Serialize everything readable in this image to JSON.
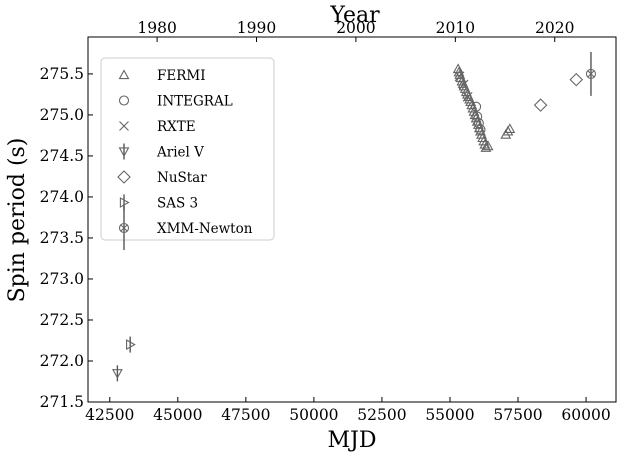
{
  "chart_data": {
    "type": "scatter",
    "xlabel": "MJD",
    "ylabel": "Spin period (s)",
    "top_xlabel": "Year",
    "xlim": [
      41700,
      61100
    ],
    "ylim": [
      271.5,
      275.95
    ],
    "xticks": [
      42500,
      45000,
      47500,
      50000,
      52500,
      55000,
      57500,
      60000
    ],
    "yticks": [
      271.5,
      272.0,
      272.5,
      273.0,
      273.5,
      274.0,
      274.5,
      275.0,
      275.5
    ],
    "top_ticks": [
      {
        "year": "1980",
        "mjd": 44239
      },
      {
        "year": "1990",
        "mjd": 47892
      },
      {
        "year": "2000",
        "mjd": 51544
      },
      {
        "year": "2010",
        "mjd": 55197
      },
      {
        "year": "2020",
        "mjd": 58849
      }
    ],
    "legend_position": "upper-left",
    "grid": false,
    "series": [
      {
        "name": "FERMI",
        "marker": "triangle-up",
        "points": [
          [
            55300,
            275.56
          ],
          [
            55330,
            275.52
          ],
          [
            55360,
            275.49
          ],
          [
            55400,
            275.45
          ],
          [
            55440,
            275.41
          ],
          [
            55480,
            275.38
          ],
          [
            55520,
            275.35
          ],
          [
            55560,
            275.32
          ],
          [
            55600,
            275.28
          ],
          [
            55640,
            275.25
          ],
          [
            55680,
            275.22
          ],
          [
            55720,
            275.19
          ],
          [
            55760,
            275.16
          ],
          [
            55800,
            275.12
          ],
          [
            55840,
            275.08
          ],
          [
            55880,
            275.04
          ],
          [
            55920,
            275.0
          ],
          [
            55960,
            274.96
          ],
          [
            56000,
            274.92
          ],
          [
            56040,
            274.88
          ],
          [
            56080,
            274.84
          ],
          [
            56120,
            274.8
          ],
          [
            56160,
            274.76
          ],
          [
            56200,
            274.72
          ],
          [
            56240,
            274.68
          ],
          [
            56280,
            274.64
          ],
          [
            56320,
            274.6
          ],
          [
            56400,
            274.62
          ],
          [
            57050,
            274.76
          ],
          [
            57130,
            274.8
          ],
          [
            57200,
            274.83
          ]
        ]
      },
      {
        "name": "INTEGRAL",
        "marker": "circle",
        "points": [
          [
            55960,
            275.1
          ],
          [
            56000,
            274.98
          ],
          [
            56060,
            274.9
          ],
          [
            56120,
            274.82
          ]
        ]
      },
      {
        "name": "RXTE",
        "marker": "x",
        "points": [
          [
            55350,
            275.47
          ],
          [
            55500,
            275.37
          ],
          [
            55650,
            275.22
          ]
        ]
      },
      {
        "name": "Ariel V",
        "marker": "triangle-down",
        "points": [
          [
            42780,
            271.85
          ]
        ]
      },
      {
        "name": "NuStar",
        "marker": "diamond",
        "points": [
          [
            58330,
            275.12
          ],
          [
            59640,
            275.43
          ]
        ]
      },
      {
        "name": "SAS 3",
        "marker": "triangle-right",
        "points": [
          [
            43250,
            272.2
          ]
        ]
      },
      {
        "name": "XMM-Newton",
        "marker": "circle-x",
        "points": [
          [
            60180,
            275.5
          ]
        ]
      }
    ]
  }
}
